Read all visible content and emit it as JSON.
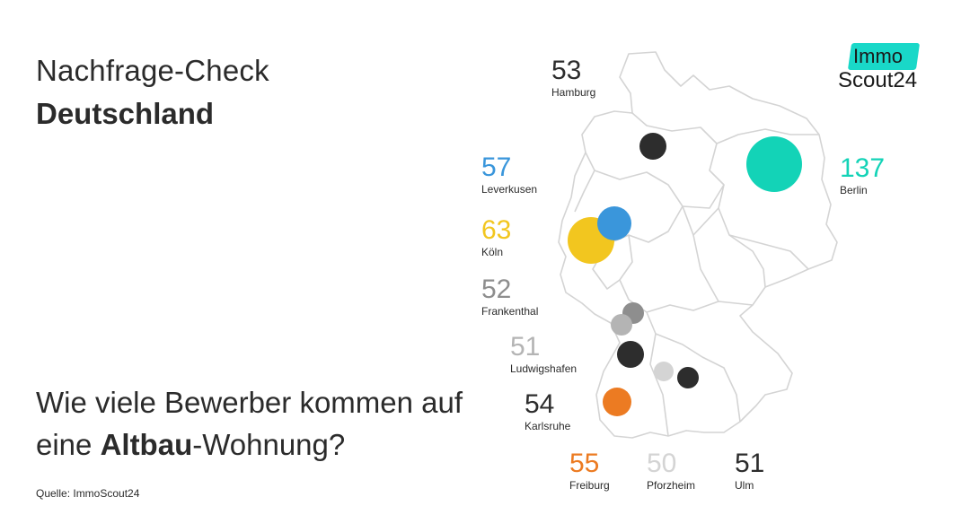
{
  "title": {
    "line1": "Nachfrage-Check",
    "line2": "Deutschland"
  },
  "question": {
    "part1": "Wie viele Bewerber kommen auf eine ",
    "bold": "Altbau",
    "part2": "-Wohnung?"
  },
  "source": "Quelle: ImmoScout24",
  "logo": {
    "immo": "Immo",
    "scout": "Scout24",
    "accent_color": "#19d8c8"
  },
  "cities": [
    {
      "name": "Hamburg",
      "value": "53",
      "color": "#2d2d2d"
    },
    {
      "name": "Berlin",
      "value": "137",
      "color": "#13d3b7"
    },
    {
      "name": "Leverkusen",
      "value": "57",
      "color": "#3a96db"
    },
    {
      "name": "Köln",
      "value": "63",
      "color": "#f2c61f"
    },
    {
      "name": "Frankenthal",
      "value": "52",
      "color": "#8e8e8e"
    },
    {
      "name": "Ludwigshafen",
      "value": "51",
      "color": "#b4b4b4"
    },
    {
      "name": "Karlsruhe",
      "value": "54",
      "color": "#2d2d2d"
    },
    {
      "name": "Freiburg",
      "value": "55",
      "color": "#ec7b22"
    },
    {
      "name": "Pforzheim",
      "value": "50",
      "color": "#d4d4d4"
    },
    {
      "name": "Ulm",
      "value": "51",
      "color": "#2d2d2d"
    }
  ]
}
